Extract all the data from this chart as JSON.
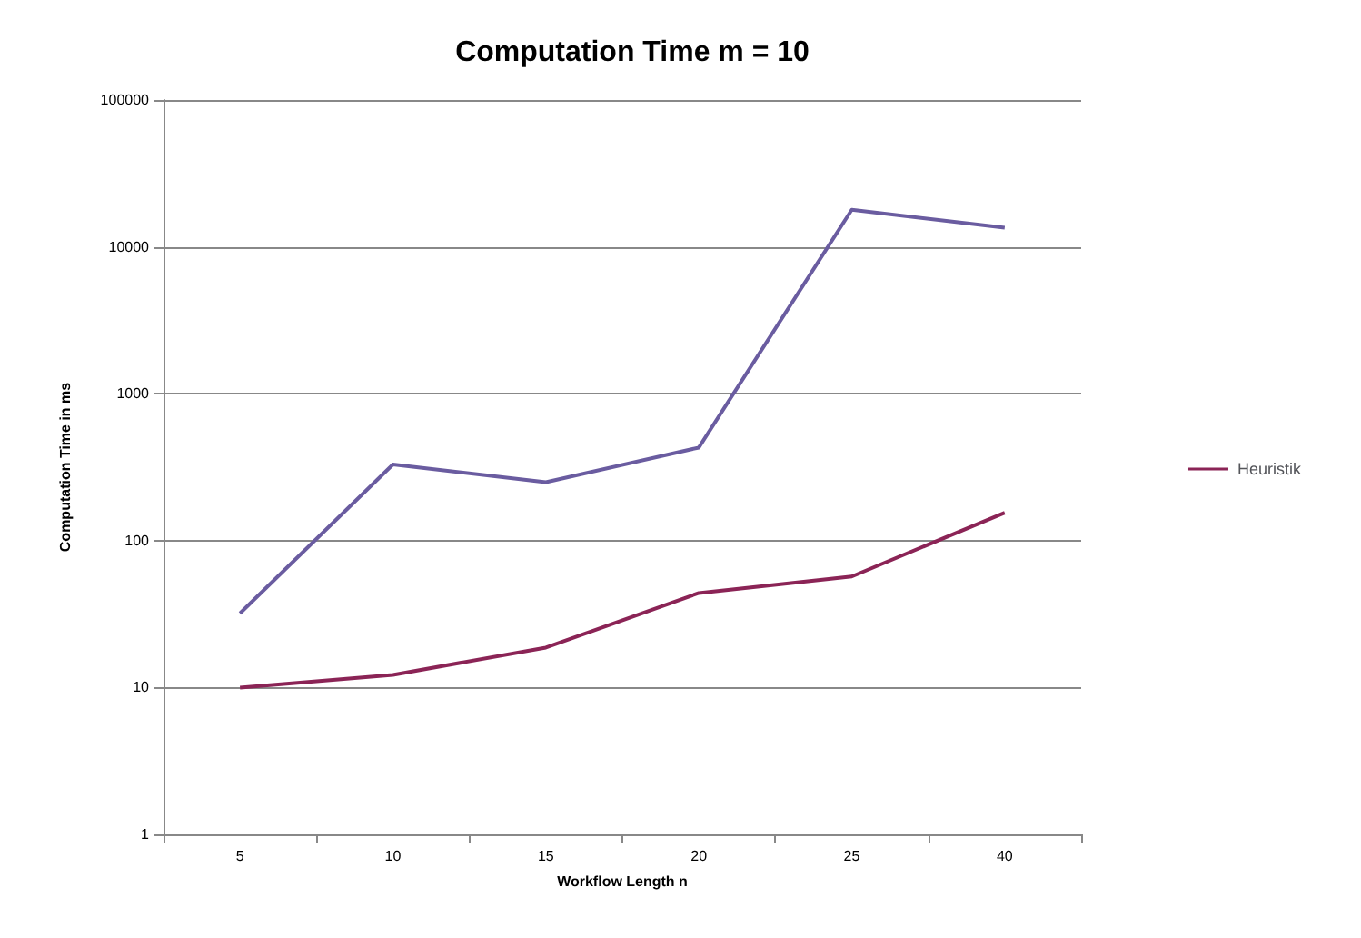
{
  "chart_data": {
    "type": "line",
    "title": "Computation Time m = 10",
    "xlabel": "Workflow Length n",
    "ylabel": "Computation Time in ms",
    "categories": [
      "5",
      "10",
      "15",
      "20",
      "25",
      "40"
    ],
    "series": [
      {
        "color": "#6a5ca0",
        "values": [
          32,
          330,
          250,
          430,
          17900,
          13500
        ]
      },
      {
        "name": "Heuristik",
        "color": "#8b2456",
        "values": [
          10,
          12.2,
          18.7,
          44,
          57,
          155
        ]
      }
    ],
    "log": "y",
    "ylim": [
      1,
      100000
    ],
    "yticks": [
      1,
      10,
      100,
      1000,
      10000,
      100000
    ],
    "grid": "y",
    "legend": "right",
    "marker": "none",
    "line_style": "solid"
  }
}
